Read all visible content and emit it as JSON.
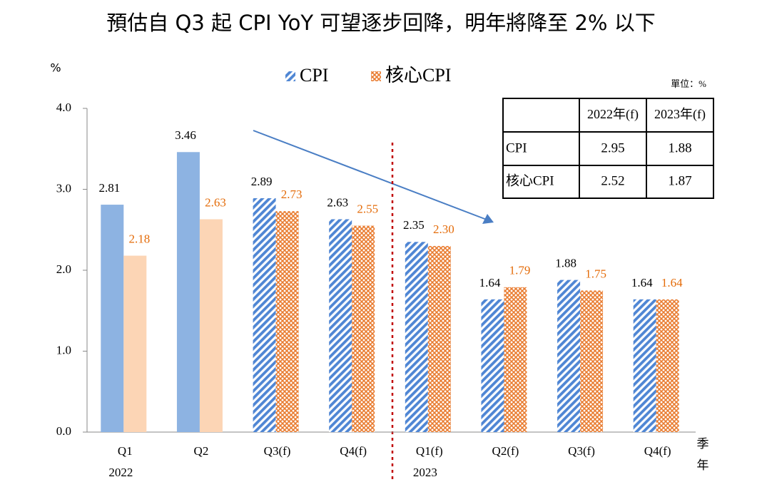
{
  "chart_data": {
    "type": "bar",
    "title": "預估自 Q3 起 CPI YoY 可望逐步回降，明年將降至 2% 以下",
    "y_label": "%",
    "x_label": "季年",
    "categories": [
      "Q1",
      "Q2",
      "Q3(f)",
      "Q4(f)",
      "Q1(f)",
      "Q2(f)",
      "Q3(f)",
      "Q4(f)"
    ],
    "years": [
      "2022",
      null,
      null,
      null,
      "2023",
      null,
      null,
      null
    ],
    "forecast": [
      false,
      false,
      true,
      true,
      true,
      true,
      true,
      true
    ],
    "series": [
      {
        "name": "CPI",
        "color": "#8db3e2",
        "pattern_color": "#4f86d4",
        "label_color": "#000000",
        "values": [
          2.81,
          3.46,
          2.89,
          2.63,
          2.35,
          1.64,
          1.88,
          1.64
        ],
        "value_labels": [
          "2.81",
          "3.46",
          "2.89",
          "2.63",
          "2.35",
          "1.64",
          "1.88",
          "1.64"
        ]
      },
      {
        "name": "核心CPI",
        "color": "#fcd5b5",
        "pattern_color": "#e97c30",
        "label_color": "#e46c0a",
        "values": [
          2.18,
          2.63,
          2.73,
          2.55,
          2.3,
          1.79,
          1.75,
          1.64
        ],
        "value_labels": [
          "2.18",
          "2.63",
          "2.73",
          "2.55",
          "2.30",
          "1.79",
          "1.75",
          "1.64"
        ]
      }
    ],
    "ylim": [
      0,
      4
    ],
    "yticks": [
      {
        "value": 0,
        "label": "0.0"
      },
      {
        "value": 1,
        "label": "1.0"
      },
      {
        "value": 2,
        "label": "2.0"
      },
      {
        "value": 3,
        "label": "3.0"
      },
      {
        "value": 4,
        "label": "4.0"
      }
    ],
    "grid": false
  },
  "table": {
    "unit": "單位：%",
    "columns": [
      "2022年(f)",
      "2023年(f)"
    ],
    "rows": [
      {
        "label": "CPI",
        "cells": [
          "2.95",
          "1.88"
        ]
      },
      {
        "label": "核心CPI",
        "cells": [
          "2.52",
          "1.87"
        ]
      }
    ]
  }
}
